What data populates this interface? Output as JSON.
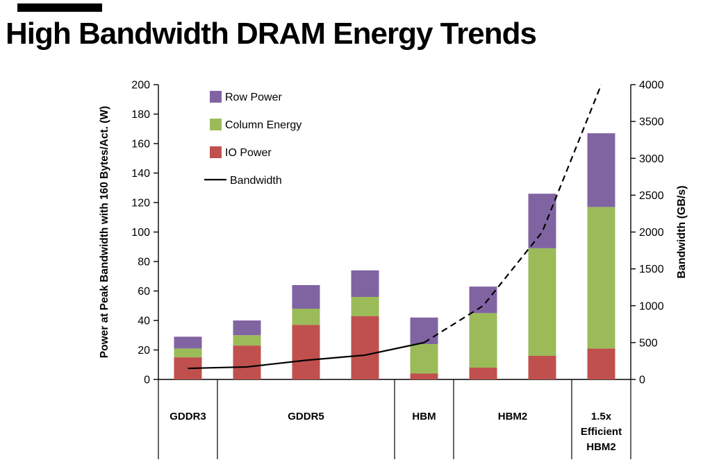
{
  "title": "High Bandwidth DRAM Energy Trends",
  "chart_data": {
    "type": "bar",
    "stacked": true,
    "title": "High Bandwidth DRAM Energy Trends",
    "grid": false,
    "categories": [
      "GDDR3",
      "GDDR5",
      "GDDR5",
      "GDDR5",
      "HBM",
      "HBM2",
      "HBM2",
      "1.5x Efficient HBM2"
    ],
    "groups": [
      {
        "label_lines": [
          "GDDR3"
        ],
        "span": 1
      },
      {
        "label_lines": [
          "GDDR5"
        ],
        "span": 3
      },
      {
        "label_lines": [
          "HBM"
        ],
        "span": 1
      },
      {
        "label_lines": [
          "HBM2"
        ],
        "span": 2
      },
      {
        "label_lines": [
          "1.5x",
          "Efficient",
          "HBM2"
        ],
        "span": 1
      }
    ],
    "series": [
      {
        "name": "IO Power",
        "color": "#c0504d",
        "values": [
          15,
          23,
          37,
          43,
          4,
          8,
          16,
          21
        ]
      },
      {
        "name": "Column Energy",
        "color": "#9bbb59",
        "values": [
          6,
          7,
          11,
          13,
          20,
          37,
          73,
          96
        ]
      },
      {
        "name": "Row Power",
        "color": "#8064a2",
        "values": [
          8,
          10,
          16,
          18,
          18,
          18,
          37,
          50
        ]
      }
    ],
    "line": {
      "name": "Bandwidth",
      "color": "#000000",
      "values": [
        150,
        170,
        260,
        330,
        500,
        1000,
        2000,
        4000
      ],
      "solid_until_index": 4
    },
    "y_left": {
      "label": "Power at Peak Bandwidth with 160 Bytes/Act. (W)",
      "min": 0,
      "max": 200,
      "step": 20
    },
    "y_right": {
      "label": "Bandwidth (GB/s)",
      "min": 0,
      "max": 4000,
      "step": 500
    },
    "legend": [
      {
        "label": "Row Power",
        "swatch": "box",
        "color": "#8064a2"
      },
      {
        "label": "Column Energy",
        "swatch": "box",
        "color": "#9bbb59"
      },
      {
        "label": "IO Power",
        "swatch": "box",
        "color": "#c0504d"
      },
      {
        "label": "Bandwidth",
        "swatch": "line",
        "color": "#000000"
      }
    ],
    "legend_position": "upper-left-inside"
  }
}
